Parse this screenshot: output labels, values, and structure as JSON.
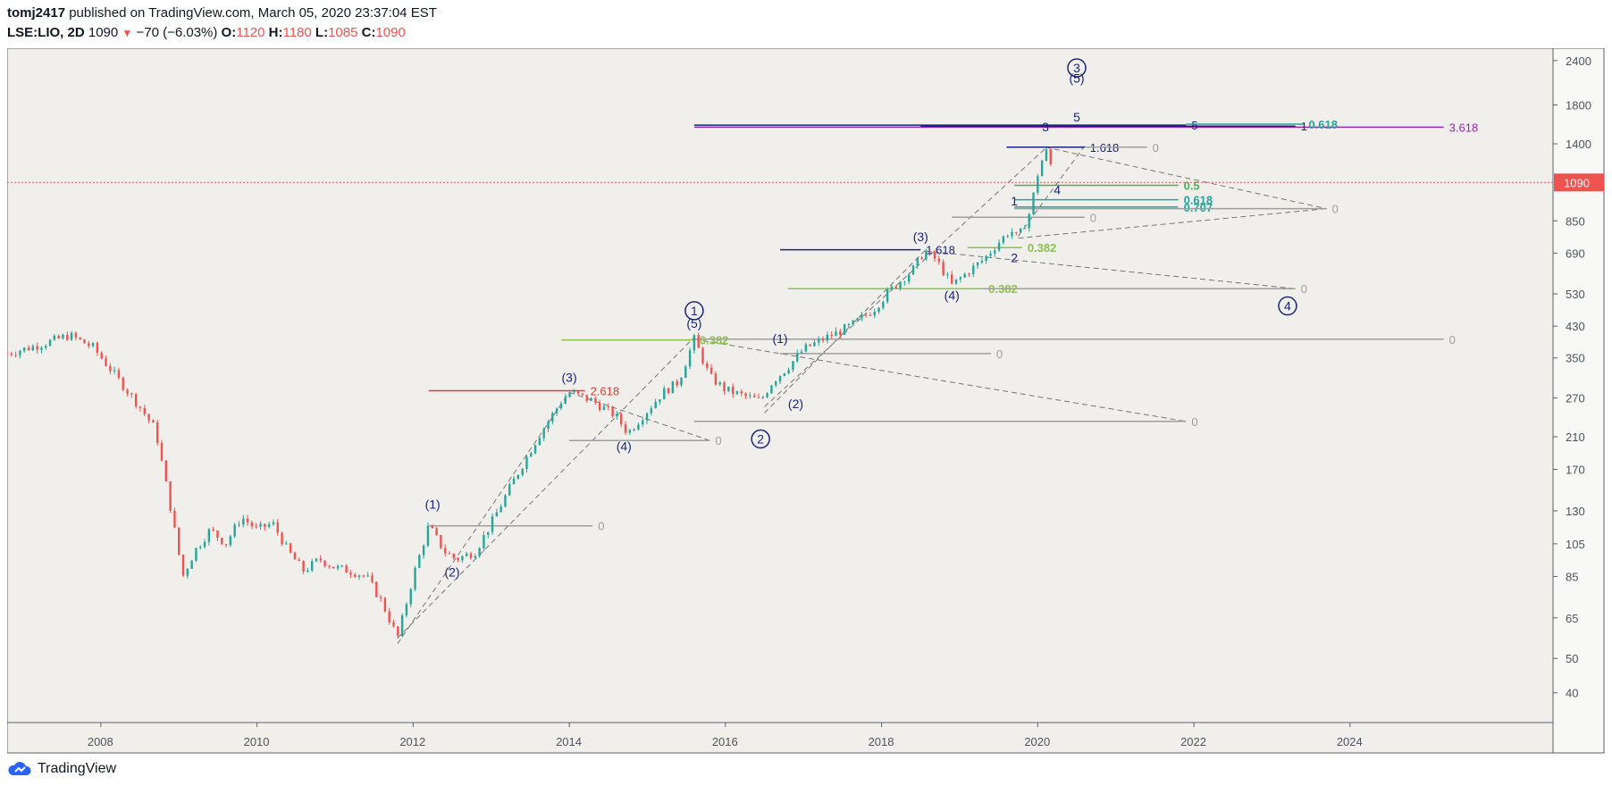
{
  "header": {
    "author": "tomj2417",
    "published_text": "published on TradingView.com, March 05, 2020 23:37:04 EST",
    "symbol": "LSE:LIO, 2D",
    "last": "1090",
    "change": "−70 (−6.03%)",
    "o_label": "O:",
    "o_value": "1120",
    "h_label": "H:",
    "h_value": "1180",
    "l_label": "L:",
    "l_value": "1085",
    "c_label": "C:",
    "c_value": "1090"
  },
  "footer": {
    "brand": "TradingView"
  },
  "colors": {
    "background": "#f0efeb",
    "up": "#26a69a",
    "down": "#ef5350",
    "wave": "#1a237e",
    "fib_green": "#8bc34a",
    "fib_teal": "#26a69a",
    "fib_purple": "#9c27b0",
    "fib_red": "#e53935",
    "zero_line": "#9e9e9e"
  },
  "chart_data": {
    "type": "candlestick",
    "scale": "log",
    "x_ticks": [
      "2008",
      "2010",
      "2012",
      "2014",
      "2016",
      "2018",
      "2020",
      "2022",
      "2024"
    ],
    "y_ticks": [
      "2400",
      "1800",
      "1400",
      "1090",
      "850",
      "690",
      "530",
      "430",
      "350",
      "270",
      "210",
      "170",
      "130",
      "105",
      "85",
      "65",
      "50",
      "40"
    ],
    "y_tick_values": [
      2400,
      1800,
      1400,
      850,
      690,
      530,
      430,
      350,
      270,
      210,
      170,
      130,
      105,
      85,
      65,
      50,
      40
    ],
    "ylim": [
      33,
      2600
    ],
    "xlim": [
      2006.8,
      2026.6
    ],
    "last_price": 1090,
    "last_price_label": "1090",
    "price_path": [
      [
        2006.8,
        360
      ],
      [
        2007.2,
        380
      ],
      [
        2007.6,
        405
      ],
      [
        2007.9,
        375
      ],
      [
        2008.1,
        330
      ],
      [
        2008.3,
        290
      ],
      [
        2008.5,
        255
      ],
      [
        2008.7,
        220
      ],
      [
        2008.9,
        130
      ],
      [
        2009.05,
        85
      ],
      [
        2009.2,
        100
      ],
      [
        2009.4,
        115
      ],
      [
        2009.6,
        105
      ],
      [
        2009.8,
        125
      ],
      [
        2010.0,
        115
      ],
      [
        2010.2,
        120
      ],
      [
        2010.4,
        100
      ],
      [
        2010.6,
        88
      ],
      [
        2010.8,
        95
      ],
      [
        2011.0,
        90
      ],
      [
        2011.2,
        88
      ],
      [
        2011.4,
        85
      ],
      [
        2011.6,
        72
      ],
      [
        2011.8,
        57
      ],
      [
        2012.0,
        85
      ],
      [
        2012.2,
        118
      ],
      [
        2012.4,
        100
      ],
      [
        2012.55,
        95
      ],
      [
        2012.8,
        100
      ],
      [
        2013.0,
        120
      ],
      [
        2013.3,
        160
      ],
      [
        2013.6,
        210
      ],
      [
        2013.9,
        265
      ],
      [
        2014.0,
        280
      ],
      [
        2014.3,
        265
      ],
      [
        2014.6,
        240
      ],
      [
        2014.75,
        215
      ],
      [
        2014.9,
        235
      ],
      [
        2015.2,
        280
      ],
      [
        2015.4,
        300
      ],
      [
        2015.6,
        395
      ],
      [
        2015.8,
        310
      ],
      [
        2016.0,
        285
      ],
      [
        2016.2,
        275
      ],
      [
        2016.45,
        265
      ],
      [
        2016.6,
        300
      ],
      [
        2016.8,
        330
      ],
      [
        2017.0,
        370
      ],
      [
        2017.3,
        400
      ],
      [
        2017.6,
        430
      ],
      [
        2017.9,
        480
      ],
      [
        2018.1,
        540
      ],
      [
        2018.4,
        620
      ],
      [
        2018.55,
        700
      ],
      [
        2018.7,
        660
      ],
      [
        2018.9,
        560
      ],
      [
        2019.1,
        610
      ],
      [
        2019.3,
        660
      ],
      [
        2019.5,
        740
      ],
      [
        2019.65,
        800
      ],
      [
        2019.75,
        760
      ],
      [
        2019.9,
        900
      ],
      [
        2020.0,
        1150
      ],
      [
        2020.1,
        1350
      ],
      [
        2020.2,
        1160
      ],
      [
        2020.22,
        1090
      ]
    ],
    "horizontal_levels": [
      {
        "y": 1560,
        "x1": 2015.6,
        "x2": 2025.2,
        "color": "#9c27b0",
        "label": "3.618"
      },
      {
        "y": 1580,
        "x1": 2015.6,
        "x2": 2021.9,
        "color": "#1a237e",
        "label": "5"
      },
      {
        "y": 1570,
        "x1": 2018.5,
        "x2": 2023.3,
        "color": "#1a237e",
        "label": "1"
      },
      {
        "y": 1590,
        "x1": 2021.9,
        "x2": 2023.4,
        "color": "#26a69a",
        "label": "0.618"
      },
      {
        "y": 1370,
        "x1": 2019.6,
        "x2": 2020.6,
        "color": "#1a237e",
        "label": "1.618"
      },
      {
        "y": 1370,
        "x1": 2020.6,
        "x2": 2021.4,
        "color": "#9e9e9e",
        "label": "0"
      },
      {
        "y": 1070,
        "x1": 2019.7,
        "x2": 2021.8,
        "color": "#4caf50",
        "label": "0.5"
      },
      {
        "y": 975,
        "x1": 2019.7,
        "x2": 2021.8,
        "color": "#26a69a",
        "label": "0.618"
      },
      {
        "y": 930,
        "x1": 2019.7,
        "x2": 2021.8,
        "color": "#26a69a",
        "label": "0.707"
      },
      {
        "y": 920,
        "x1": 2019.7,
        "x2": 2023.7,
        "color": "#9e9e9e",
        "label": "0"
      },
      {
        "y": 870,
        "x1": 2018.9,
        "x2": 2020.6,
        "color": "#9e9e9e",
        "label": "0"
      },
      {
        "y": 705,
        "x1": 2016.7,
        "x2": 2018.5,
        "color": "#1a237e",
        "label": "1.618"
      },
      {
        "y": 715,
        "x1": 2019.1,
        "x2": 2019.8,
        "color": "#8bc34a",
        "label": "0.382"
      },
      {
        "y": 548,
        "x1": 2016.8,
        "x2": 2019.3,
        "color": "#8bc34a",
        "label": "0.382"
      },
      {
        "y": 548,
        "x1": 2019.3,
        "x2": 2023.3,
        "color": "#9e9e9e",
        "label": "0"
      },
      {
        "y": 393,
        "x1": 2013.9,
        "x2": 2015.6,
        "color": "#8bc34a",
        "label": "0.382"
      },
      {
        "y": 395,
        "x1": 2015.6,
        "x2": 2025.2,
        "color": "#9e9e9e",
        "label": "0"
      },
      {
        "y": 360,
        "x1": 2016.7,
        "x2": 2019.4,
        "color": "#9e9e9e",
        "label": "0"
      },
      {
        "y": 283,
        "x1": 2012.2,
        "x2": 2014.2,
        "color": "#e53935",
        "label": "2.618"
      },
      {
        "y": 232,
        "x1": 2015.6,
        "x2": 2021.9,
        "color": "#9e9e9e",
        "label": "0"
      },
      {
        "y": 205,
        "x1": 2014.0,
        "x2": 2015.8,
        "color": "#9e9e9e",
        "label": "0"
      },
      {
        "y": 118,
        "x1": 2012.2,
        "x2": 2014.3,
        "color": "#9e9e9e",
        "label": "0"
      }
    ],
    "dashed_lines": [
      [
        [
          2011.8,
          57
        ],
        [
          2015.6,
          400
        ]
      ],
      [
        [
          2011.8,
          55
        ],
        [
          2014.0,
          280
        ]
      ],
      [
        [
          2015.6,
          395
        ],
        [
          2021.9,
          232
        ]
      ],
      [
        [
          2014.0,
          280
        ],
        [
          2015.8,
          205
        ]
      ],
      [
        [
          2016.5,
          255
        ],
        [
          2020.1,
          1360
        ]
      ],
      [
        [
          2016.5,
          245
        ],
        [
          2018.55,
          700
        ]
      ],
      [
        [
          2018.55,
          700
        ],
        [
          2023.3,
          548
        ]
      ],
      [
        [
          2019.75,
          760
        ],
        [
          2023.7,
          920
        ]
      ],
      [
        [
          2020.1,
          1370
        ],
        [
          2023.7,
          920
        ]
      ],
      [
        [
          2019.75,
          770
        ],
        [
          2020.6,
          1380
        ]
      ]
    ],
    "wave_labels": [
      {
        "text": "(1)",
        "x": 2012.25,
        "y": 132
      },
      {
        "text": "(2)",
        "x": 2012.5,
        "y": 85
      },
      {
        "text": "(3)",
        "x": 2014.0,
        "y": 300
      },
      {
        "text": "(4)",
        "x": 2014.7,
        "y": 192
      },
      {
        "text": "(5)",
        "x": 2015.6,
        "y": 425
      },
      {
        "text": "(1)",
        "x": 2016.7,
        "y": 385
      },
      {
        "text": "(2)",
        "x": 2016.9,
        "y": 253
      },
      {
        "text": "(3)",
        "x": 2018.5,
        "y": 745
      },
      {
        "text": "(4)",
        "x": 2018.9,
        "y": 510
      },
      {
        "text": "(5)",
        "x": 2020.5,
        "y": 2080
      },
      {
        "text": "1",
        "x": 2019.7,
        "y": 940
      },
      {
        "text": "2",
        "x": 2019.7,
        "y": 650
      },
      {
        "text": "3",
        "x": 2020.1,
        "y": 1520
      },
      {
        "text": "4",
        "x": 2020.25,
        "y": 1010
      },
      {
        "text": "5",
        "x": 2020.5,
        "y": 1620
      }
    ],
    "circle_labels": [
      {
        "text": "1",
        "x": 2015.6,
        "y": 475
      },
      {
        "text": "2",
        "x": 2016.45,
        "y": 207
      },
      {
        "text": "3",
        "x": 2020.5,
        "y": 2290
      },
      {
        "text": "4",
        "x": 2023.2,
        "y": 490
      }
    ]
  }
}
